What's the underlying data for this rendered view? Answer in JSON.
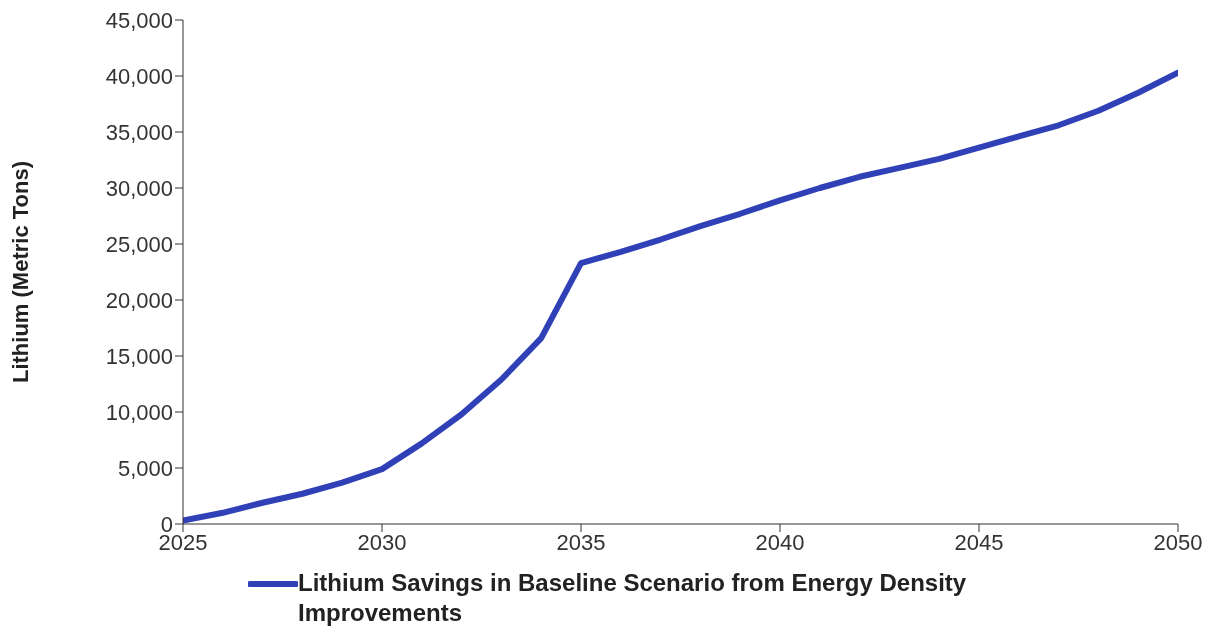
{
  "chart_data": {
    "type": "line",
    "ylabel": "Lithium (Metric Tons)",
    "x": [
      2025,
      2026,
      2027,
      2028,
      2029,
      2030,
      2031,
      2032,
      2033,
      2034,
      2035,
      2036,
      2037,
      2038,
      2039,
      2040,
      2041,
      2042,
      2043,
      2044,
      2045,
      2046,
      2047,
      2048,
      2049,
      2050
    ],
    "series": [
      {
        "name": "Lithium Savings in Baseline Scenario from Energy Density Improvements",
        "color": "#3041b8",
        "values": [
          300,
          1000,
          1900,
          2700,
          3700,
          4900,
          7200,
          9800,
          12900,
          16600,
          23300,
          24300,
          25400,
          26600,
          27700,
          28900,
          30000,
          31000,
          31800,
          32600,
          33600,
          34600,
          35600,
          36900,
          38500,
          40300
        ]
      }
    ],
    "xlim": [
      2025,
      2050
    ],
    "xticks": [
      2025,
      2030,
      2035,
      2040,
      2045,
      2050
    ],
    "ylim": [
      0,
      45000
    ],
    "yticks": [
      0,
      {
        "value": 5000,
        "label": "5,000"
      },
      {
        "value": 10000,
        "label": "10,000"
      },
      {
        "value": 15000,
        "label": "15,000"
      },
      {
        "value": 20000,
        "label": "20,000"
      },
      {
        "value": 25000,
        "label": "25,000"
      },
      {
        "value": 30000,
        "label": "30,000"
      },
      {
        "value": 35000,
        "label": "35,000"
      },
      {
        "value": 40000,
        "label": "40,000"
      },
      {
        "value": 45000,
        "label": "45,000"
      }
    ],
    "grid": false,
    "legend": "bottom",
    "marker": "none",
    "line_style": "solid"
  }
}
